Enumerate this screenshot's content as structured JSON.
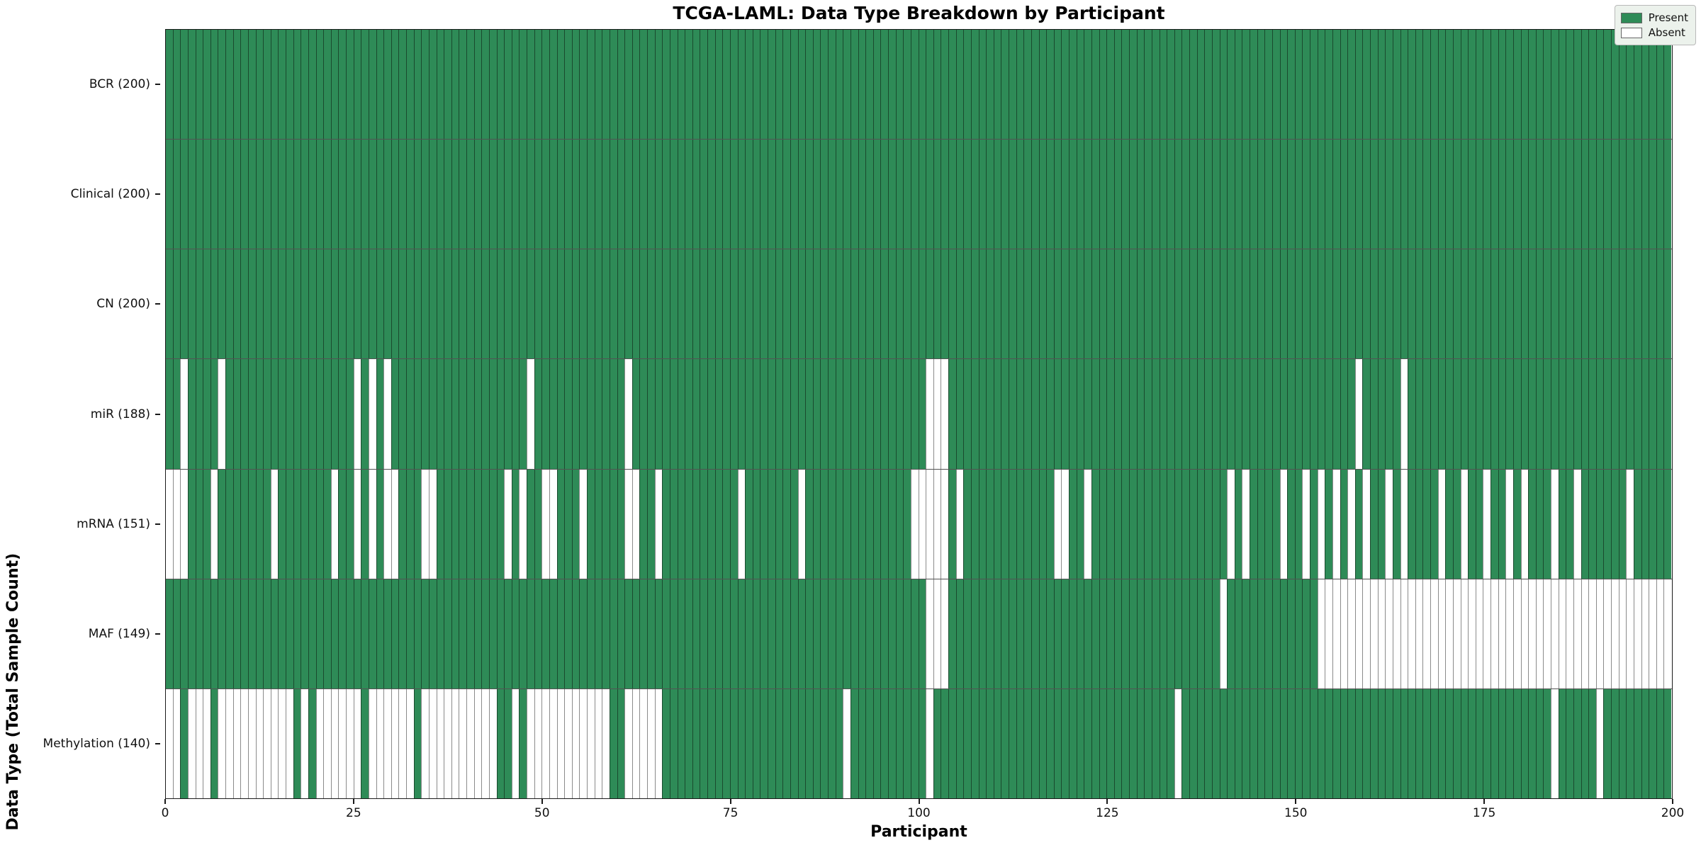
{
  "chart_data": {
    "type": "heatmap",
    "title": "TCGA-LAML: Data Type Breakdown by Participant",
    "xlabel": "Participant",
    "ylabel": "Data Type (Total Sample Count)",
    "n_participants": 200,
    "x_ticks": [
      0,
      25,
      50,
      75,
      100,
      125,
      150,
      175,
      200
    ],
    "x_range": [
      0,
      200
    ],
    "grid": false,
    "legend_position": "upper right",
    "colors": {
      "present": "#2e8b57",
      "absent": "#ffffff",
      "cell_edge": "#1a1a1a",
      "absent_edge": "#8a8a8a"
    },
    "legend": [
      {
        "label": "Present",
        "color": "#2e8b57"
      },
      {
        "label": "Absent",
        "color": "#ffffff"
      }
    ],
    "rows": [
      {
        "label": "BCR (200)",
        "name": "BCR",
        "present_count": 200,
        "absent_cols": []
      },
      {
        "label": "Clinical (200)",
        "name": "Clinical",
        "present_count": 200,
        "absent_cols": []
      },
      {
        "label": "CN (200)",
        "name": "CN",
        "present_count": 200,
        "absent_cols": []
      },
      {
        "label": "miR (188)",
        "name": "miR",
        "present_count": 188,
        "absent_cols": [
          2,
          7,
          25,
          27,
          29,
          48,
          61,
          101,
          102,
          103,
          158,
          164
        ]
      },
      {
        "label": "mRNA (151)",
        "name": "mRNA",
        "present_count": 151,
        "absent_cols": [
          0,
          1,
          2,
          6,
          14,
          22,
          25,
          27,
          29,
          30,
          34,
          35,
          45,
          47,
          50,
          51,
          55,
          61,
          62,
          65,
          76,
          84,
          99,
          100,
          101,
          102,
          103,
          105,
          118,
          119,
          122,
          141,
          143,
          148,
          151,
          153,
          155,
          157,
          159,
          162,
          164,
          169,
          172,
          175,
          178,
          180,
          184,
          187,
          194
        ]
      },
      {
        "label": "MAF (149)",
        "name": "MAF",
        "present_count": 149,
        "absent_cols": [
          101,
          102,
          103,
          140,
          153,
          154,
          155,
          156,
          157,
          158,
          159,
          160,
          161,
          162,
          163,
          164,
          165,
          166,
          167,
          168,
          169,
          170,
          171,
          172,
          173,
          174,
          175,
          176,
          177,
          178,
          179,
          180,
          181,
          182,
          183,
          184,
          185,
          186,
          187,
          188,
          189,
          190,
          191,
          192,
          193,
          194,
          195,
          196,
          197,
          198,
          199
        ]
      },
      {
        "label": "Methylation (140)",
        "name": "Methylation",
        "present_count": 140,
        "absent_cols": [
          0,
          1,
          3,
          4,
          5,
          7,
          8,
          9,
          10,
          11,
          12,
          13,
          14,
          15,
          16,
          18,
          20,
          21,
          22,
          23,
          24,
          25,
          27,
          28,
          29,
          30,
          31,
          32,
          34,
          35,
          36,
          37,
          38,
          39,
          40,
          41,
          42,
          43,
          46,
          48,
          49,
          50,
          51,
          52,
          53,
          54,
          55,
          56,
          57,
          58,
          61,
          62,
          63,
          64,
          65,
          90,
          101,
          134,
          184,
          190
        ]
      }
    ]
  }
}
